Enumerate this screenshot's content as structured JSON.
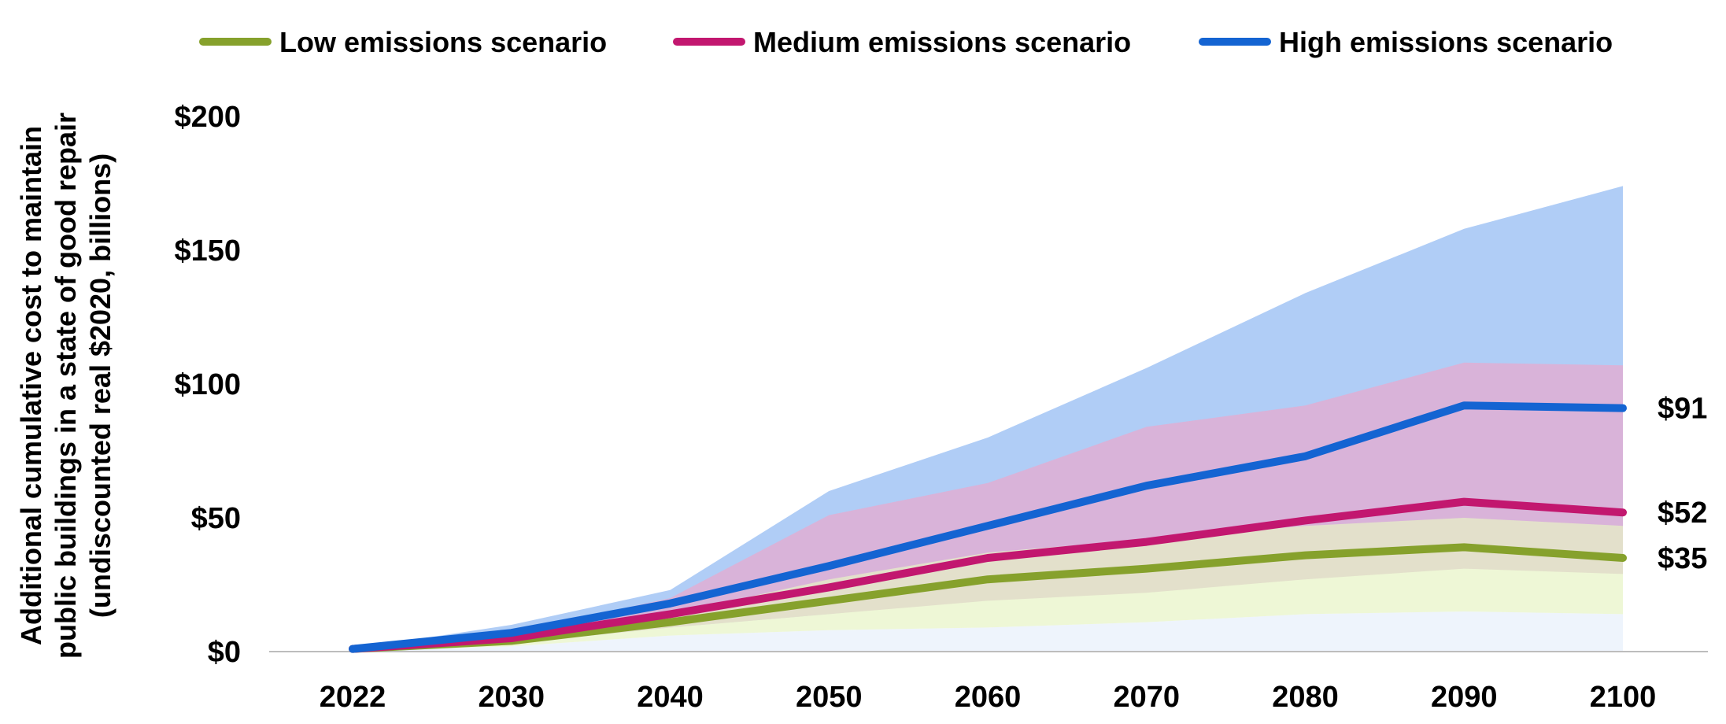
{
  "chart_data": {
    "type": "line",
    "categories": [
      "2022",
      "2030",
      "2040",
      "2050",
      "2060",
      "2070",
      "2080",
      "2090",
      "2100"
    ],
    "ylabel_lines": [
      "Additional cumulative cost to maintain",
      "public buildings in a state of good repair",
      "(undiscounted real $2020, billions)"
    ],
    "xlabel": "",
    "ylim": [
      0,
      200
    ],
    "yticks": [
      0,
      50,
      100,
      150,
      200
    ],
    "ytick_labels": [
      "$0",
      "$50",
      "$100",
      "$150",
      "$200"
    ],
    "grid": false,
    "legend_position": "top",
    "series": [
      {
        "name": "Low emissions scenario",
        "color": "#86a12c",
        "band_color": "#e7f3c4",
        "values": [
          1,
          4,
          11,
          19,
          27,
          31,
          36,
          39,
          35
        ],
        "band_low": [
          0,
          2,
          6,
          8,
          9,
          11,
          14,
          15,
          14
        ],
        "band_high": [
          1,
          5,
          14,
          27,
          37,
          42,
          47,
          50,
          47
        ],
        "end_label": "$35"
      },
      {
        "name": "Medium emissions scenario",
        "color": "#c2176f",
        "band_color": "#d9b3d9",
        "values": [
          1,
          5,
          14,
          24,
          35,
          41,
          49,
          56,
          52
        ],
        "band_low": [
          0,
          3,
          9,
          14,
          19,
          22,
          27,
          31,
          29
        ],
        "band_high": [
          1,
          7,
          20,
          51,
          63,
          84,
          92,
          108,
          107
        ],
        "end_label": "$52"
      },
      {
        "name": "High emissions scenario",
        "color": "#1464d2",
        "band_color": "#b0cdf6",
        "values": [
          1,
          7,
          18,
          32,
          47,
          62,
          73,
          92,
          91
        ],
        "band_low": [
          0,
          3,
          9,
          14,
          20,
          26,
          31,
          38,
          37
        ],
        "band_high": [
          1,
          10,
          23,
          60,
          80,
          106,
          134,
          158,
          174
        ],
        "end_label": "$91"
      }
    ]
  }
}
